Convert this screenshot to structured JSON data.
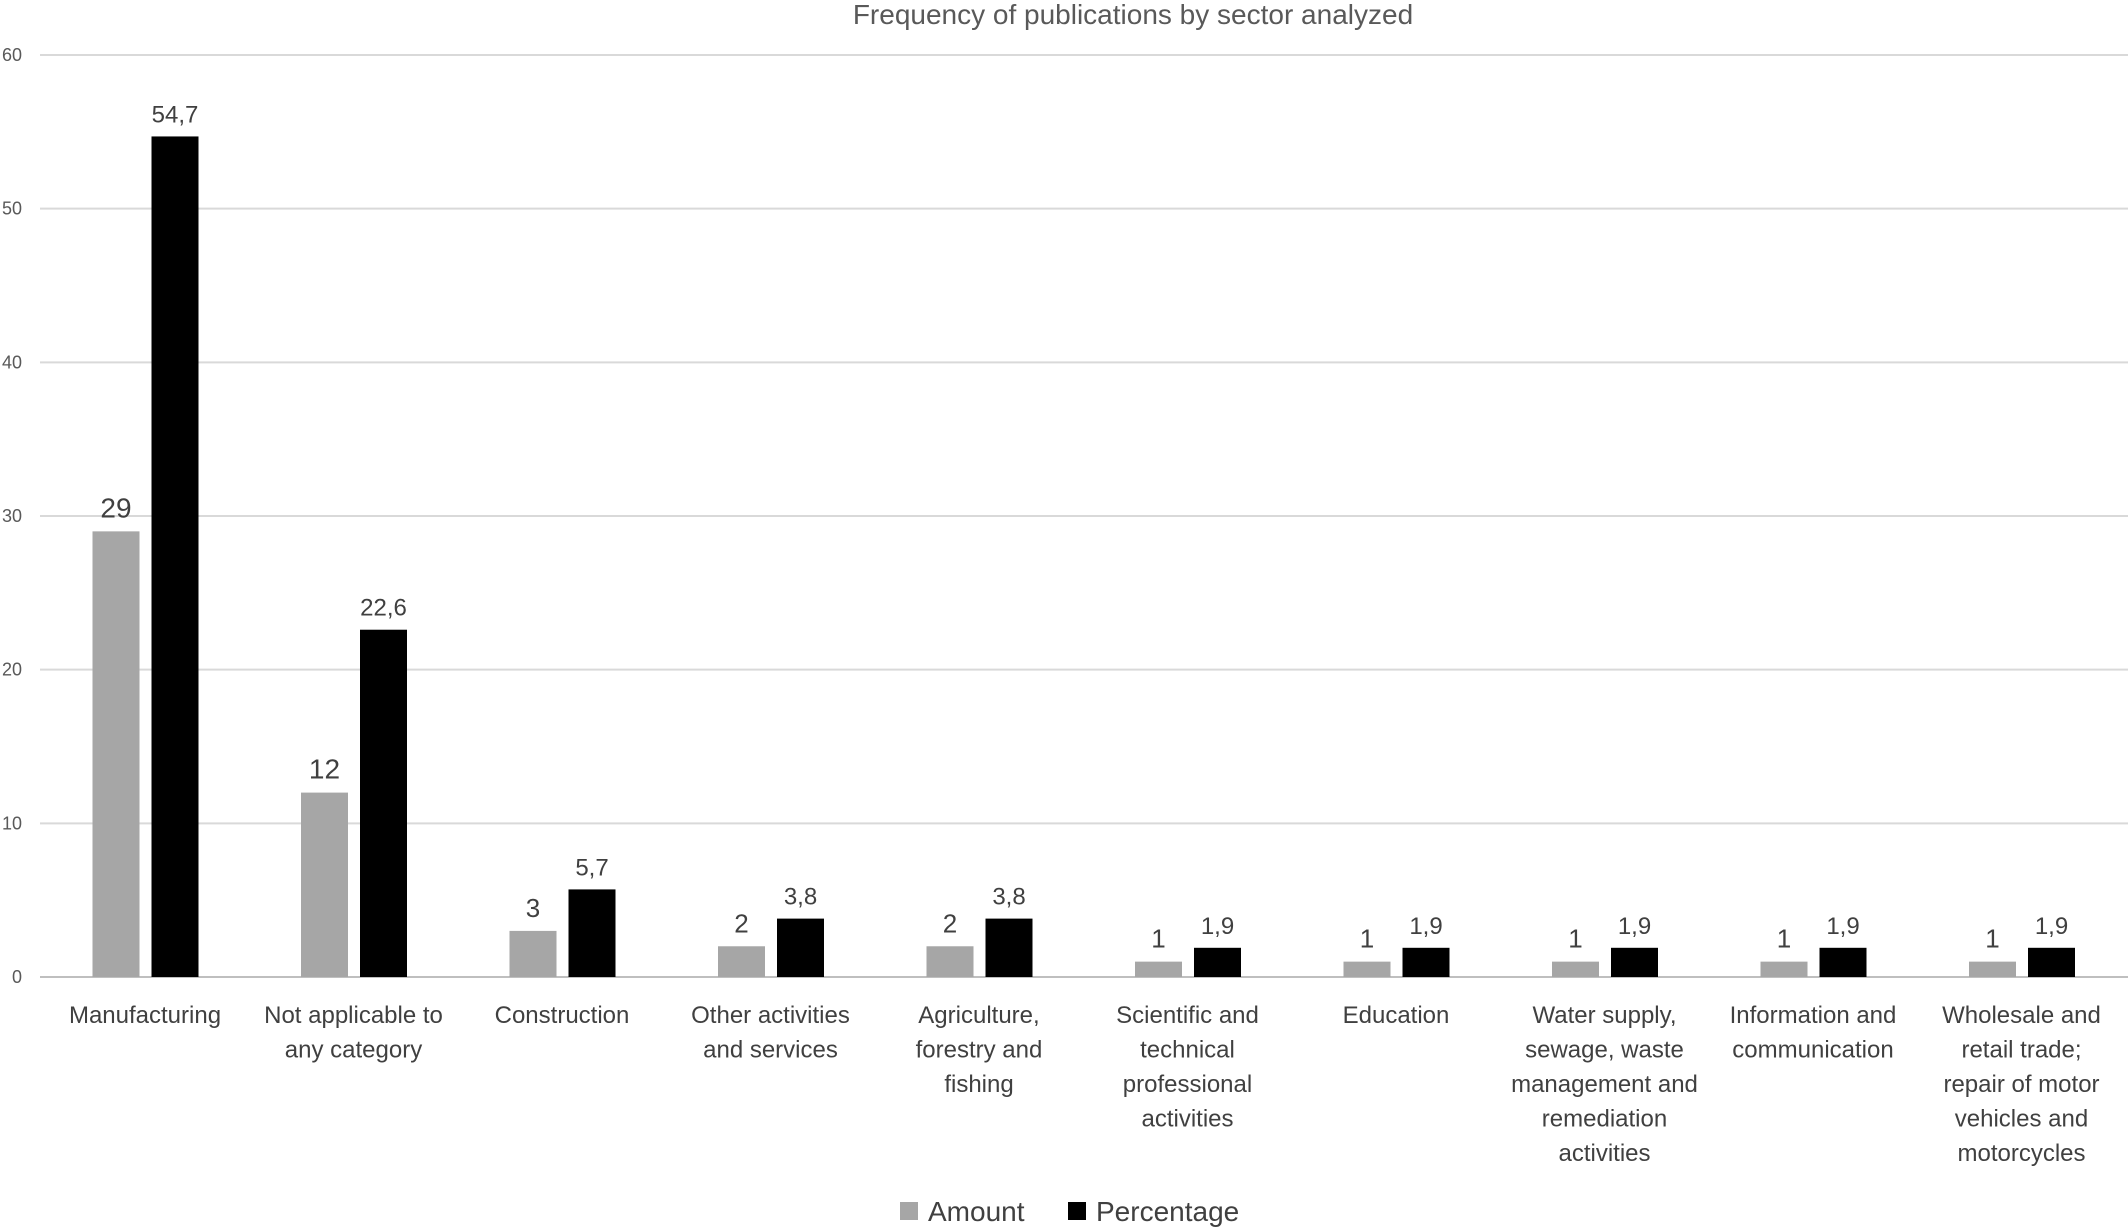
{
  "chart_data": {
    "type": "bar",
    "title": "Frequency of publications by sector analyzed",
    "xlabel": "",
    "ylabel": "",
    "ylim": [
      0,
      60
    ],
    "yticks": [
      "0",
      "10",
      "20",
      "30",
      "40",
      "50",
      "60"
    ],
    "grid": true,
    "legend_position": "bottom",
    "categories": [
      [
        "Manufacturing"
      ],
      [
        "Not applicable to",
        "any category"
      ],
      [
        "Construction"
      ],
      [
        "Other activities",
        "and services"
      ],
      [
        "Agriculture,",
        "forestry and",
        "fishing"
      ],
      [
        "Scientific and",
        "technical",
        "professional",
        "activities"
      ],
      [
        "Education"
      ],
      [
        "Water supply,",
        "sewage, waste",
        "management and",
        "remediation",
        "activities"
      ],
      [
        "Information and",
        "communication"
      ],
      [
        "Wholesale and",
        "retail trade;",
        "repair of motor",
        "vehicles and",
        "motorcycles"
      ]
    ],
    "series": [
      {
        "name": "Amount",
        "color": "#a6a6a6",
        "values": [
          29,
          12,
          3,
          2,
          2,
          1,
          1,
          1,
          1,
          1
        ],
        "labels": [
          "29",
          "12",
          "3",
          "2",
          "2",
          "1",
          "1",
          "1",
          "1",
          "1"
        ]
      },
      {
        "name": "Percentage",
        "color": "#000000",
        "values": [
          54.7,
          22.6,
          5.7,
          3.8,
          3.8,
          1.9,
          1.9,
          1.9,
          1.9,
          1.9
        ],
        "labels": [
          "54,7",
          "22,6",
          "5,7",
          "3,8",
          "3,8",
          "1,9",
          "1,9",
          "1,9",
          "1,9",
          "1,9"
        ]
      }
    ]
  }
}
